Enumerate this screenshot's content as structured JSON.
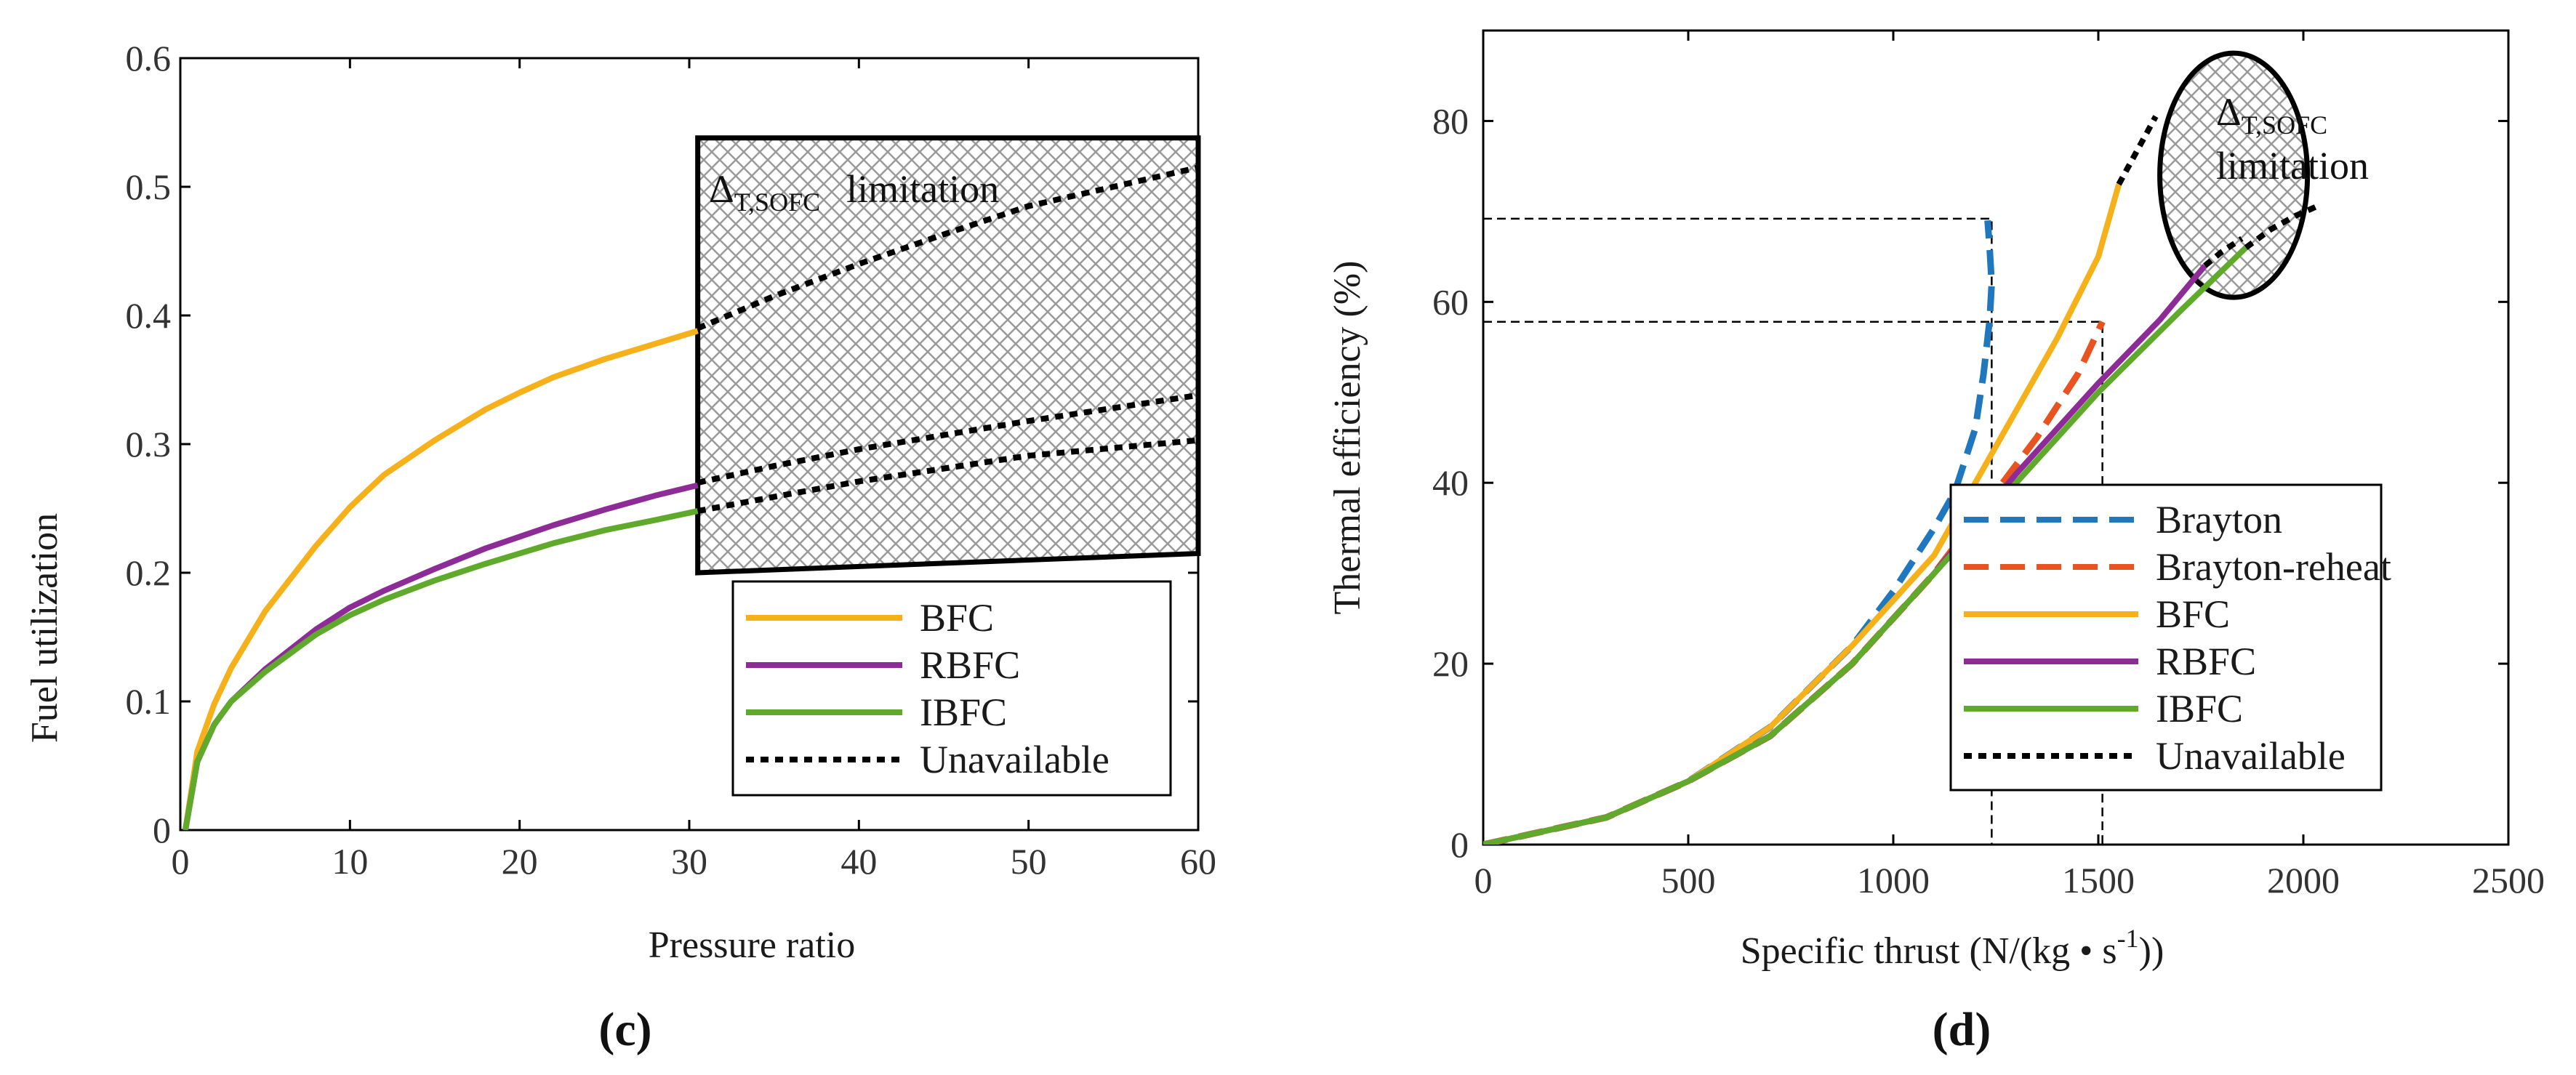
{
  "colors": {
    "BFC": "#F5B01A",
    "RBFC": "#8E2C97",
    "IBFC": "#5FAA2A",
    "Brayton": "#1F77BD",
    "Brayton-reheat": "#E8531F",
    "Unavailable": "#000000"
  },
  "chart_data": [
    {
      "type": "line",
      "panel_label": "(c)",
      "xlabel": "Pressure ratio",
      "ylabel": "Fuel utilization",
      "xlim": [
        0,
        60
      ],
      "ylim": [
        0,
        0.6
      ],
      "xticks": [
        0,
        10,
        20,
        30,
        40,
        50,
        60
      ],
      "yticks": [
        0,
        0.1,
        0.2,
        0.3,
        0.4,
        0.5,
        0.6
      ],
      "xtick_labels": [
        "0",
        "10",
        "20",
        "30",
        "40",
        "50",
        "60"
      ],
      "ytick_labels": [
        "0",
        "0.1",
        "0.2",
        "0.3",
        "0.4",
        "0.5",
        "0.6"
      ],
      "annotation": {
        "delta": "Δ",
        "sub": "T,SOFC",
        "text": "limitation"
      },
      "region": {
        "x_from": 30.5,
        "x_to": 60,
        "y_top_left": 0.538,
        "y_top_right": 0.538,
        "y_bottom_left": 0.2,
        "y_bottom_right": 0.215
      },
      "legend": [
        "BFC",
        "RBFC",
        "IBFC",
        "Unavailable"
      ],
      "series": [
        {
          "name": "BFC",
          "style": "solid",
          "x": [
            0.3,
            1,
            2,
            3,
            5,
            8,
            10,
            12,
            15,
            18,
            20,
            22,
            25,
            28,
            30.5
          ],
          "y": [
            0,
            0.061,
            0.098,
            0.126,
            0.17,
            0.221,
            0.251,
            0.276,
            0.303,
            0.327,
            0.34,
            0.352,
            0.366,
            0.378,
            0.388
          ]
        },
        {
          "name": "RBFC",
          "style": "solid",
          "x": [
            0.3,
            1,
            2,
            3,
            5,
            8,
            10,
            12,
            15,
            18,
            20,
            22,
            25,
            28,
            30.5
          ],
          "y": [
            0,
            0.053,
            0.082,
            0.1,
            0.125,
            0.156,
            0.173,
            0.186,
            0.203,
            0.219,
            0.228,
            0.237,
            0.249,
            0.26,
            0.268
          ]
        },
        {
          "name": "IBFC",
          "style": "solid",
          "x": [
            0.3,
            1,
            2,
            3,
            5,
            8,
            10,
            12,
            15,
            18,
            20,
            22,
            25,
            28,
            30.5
          ],
          "y": [
            0,
            0.053,
            0.082,
            0.1,
            0.123,
            0.152,
            0.167,
            0.179,
            0.194,
            0.207,
            0.215,
            0.223,
            0.233,
            0.241,
            0.248
          ]
        },
        {
          "name": "Unavailable",
          "style": "dotted",
          "x": [
            30.5,
            35,
            40,
            45,
            50,
            55,
            60
          ],
          "y": [
            0.39,
            0.415,
            0.44,
            0.463,
            0.485,
            0.5,
            0.515
          ]
        },
        {
          "name": "Unavailable",
          "style": "dotted",
          "x": [
            30.5,
            35,
            40,
            45,
            50,
            55,
            60
          ],
          "y": [
            0.27,
            0.283,
            0.296,
            0.307,
            0.318,
            0.328,
            0.338
          ]
        },
        {
          "name": "Unavailable",
          "style": "dotted",
          "x": [
            30.5,
            35,
            40,
            45,
            50,
            55,
            60
          ],
          "y": [
            0.248,
            0.259,
            0.271,
            0.281,
            0.291,
            0.297,
            0.303
          ]
        }
      ]
    },
    {
      "type": "line",
      "panel_label": "(d)",
      "xlabel": "Specific thrust (N/(kg • s",
      "xlabel_sup": "-1",
      "xlabel_end": "))",
      "ylabel": "Thermal efficiency (%)",
      "xlim": [
        0,
        2500
      ],
      "ylim": [
        0,
        90
      ],
      "xticks": [
        0,
        500,
        1000,
        1500,
        2000,
        2500
      ],
      "yticks": [
        0,
        20,
        40,
        60,
        80
      ],
      "xtick_labels": [
        "0",
        "500",
        "1000",
        "1500",
        "2000",
        "2500"
      ],
      "ytick_labels": [
        "0",
        "20",
        "40",
        "60",
        "80"
      ],
      "annotation": {
        "delta": "Δ",
        "sub": "T,SOFC",
        "text": "limitation"
      },
      "ellipse": {
        "cx": 1830,
        "cy": 74,
        "rx": 180,
        "ry": 13.5
      },
      "guides": [
        {
          "x_to": 1240,
          "y": 69.2
        },
        {
          "x_to": 1510,
          "y": 57.8
        }
      ],
      "legend": [
        "Brayton",
        "Brayton-reheat",
        "BFC",
        "RBFC",
        "IBFC",
        "Unavailable"
      ],
      "series": [
        {
          "name": "Brayton",
          "style": "dashed",
          "x": [
            0,
            300,
            500,
            700,
            900,
            1000,
            1100,
            1150,
            1200,
            1220,
            1235,
            1240,
            1235,
            1230
          ],
          "y": [
            0,
            3,
            7,
            13,
            22,
            28,
            35,
            39,
            46,
            52,
            58,
            62,
            66,
            69
          ]
        },
        {
          "name": "Brayton-reheat",
          "style": "dashed",
          "x": [
            0,
            300,
            500,
            700,
            900,
            1100,
            1250,
            1350,
            1450,
            1510
          ],
          "y": [
            0,
            3,
            7,
            12,
            20,
            30,
            39,
            45,
            52,
            57.8
          ]
        },
        {
          "name": "BFC",
          "style": "solid",
          "x": [
            0,
            300,
            500,
            700,
            900,
            1100,
            1200,
            1300,
            1400,
            1500,
            1550
          ],
          "y": [
            0,
            3,
            7,
            13,
            22,
            32,
            40,
            48,
            56,
            65,
            73
          ]
        },
        {
          "name": "RBFC",
          "style": "solid",
          "x": [
            0,
            300,
            500,
            700,
            900,
            1100,
            1300,
            1500,
            1650,
            1760
          ],
          "y": [
            0,
            3,
            7,
            12,
            20,
            30,
            41,
            51,
            58,
            64
          ]
        },
        {
          "name": "IBFC",
          "style": "solid",
          "x": [
            0,
            300,
            500,
            700,
            900,
            1100,
            1300,
            1500,
            1700,
            1860
          ],
          "y": [
            0,
            3,
            7,
            12,
            20,
            30,
            40,
            50,
            59,
            66
          ]
        },
        {
          "name": "Unavailable",
          "style": "dotted",
          "x": [
            1550,
            1580,
            1610,
            1640
          ],
          "y": [
            73,
            75.5,
            78,
            80.5
          ]
        },
        {
          "name": "Unavailable",
          "style": "dotted",
          "x": [
            1760,
            1800,
            1850
          ],
          "y": [
            64,
            65.5,
            67
          ]
        },
        {
          "name": "Unavailable",
          "style": "dotted",
          "x": [
            1860,
            1920,
            1980,
            2030
          ],
          "y": [
            66,
            68,
            69.5,
            70.5
          ]
        }
      ]
    }
  ]
}
